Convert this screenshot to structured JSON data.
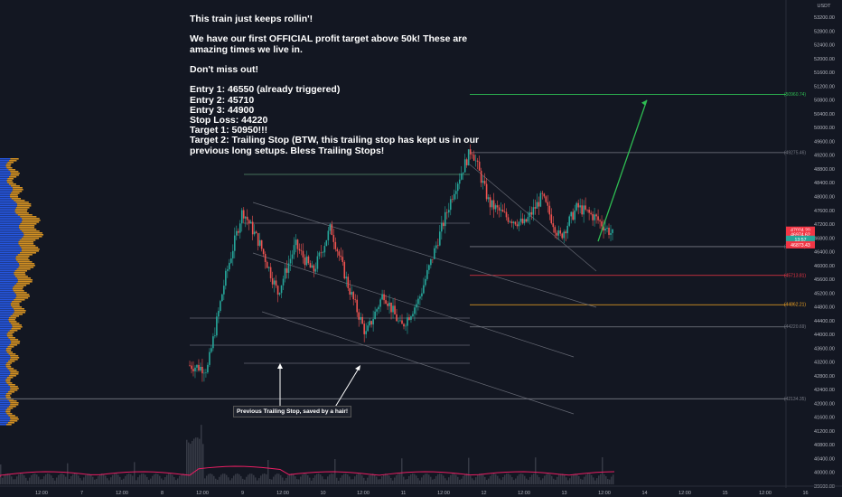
{
  "window": {
    "currency": "USDT"
  },
  "annotation": {
    "lines": [
      "This train just keeps rollin'!",
      "",
      "We have our first OFFICIAL profit target above 50k! These are",
      "amazing times we live in.",
      "",
      "Don't miss out!",
      "",
      "Entry 1: 46550 (already triggered)",
      "Entry 2: 45710",
      "Entry 3: 44900",
      "Stop Loss: 44220",
      "Target 1: 50950!!!",
      "Target 2: Trailing Stop (BTW, this trailing stop has kept us in our",
      "previous long setups. Bless Trailing Stops!"
    ],
    "callout": "Previous Trailing Stop, saved by a hair!"
  },
  "chart_data": {
    "type": "candlestick",
    "ylim": [
      39600,
      53700
    ],
    "y_ticks": [
      39600,
      40000,
      40400,
      40800,
      41200,
      41600,
      42000,
      42400,
      42800,
      43200,
      43600,
      44000,
      44400,
      44800,
      45200,
      45600,
      46000,
      46400,
      46800,
      47200,
      47600,
      48000,
      48400,
      48800,
      49200,
      49600,
      50000,
      50400,
      50800,
      51200,
      51600,
      52000,
      52400,
      52800,
      53200,
      53600
    ],
    "x_ticks": [
      "12:00",
      "7",
      "12:00",
      "8",
      "12:00",
      "9",
      "12:00",
      "10",
      "12:00",
      "11",
      "12:00",
      "12",
      "12:00",
      "13",
      "12:00",
      "14",
      "12:00",
      "15",
      "12:00",
      "16"
    ],
    "price_path": [
      {
        "t": 0,
        "p": 43100
      },
      {
        "t": 1,
        "p": 43000
      },
      {
        "t": 2,
        "p": 45600
      },
      {
        "t": 3,
        "p": 47600
      },
      {
        "t": 4,
        "p": 46600
      },
      {
        "t": 5,
        "p": 45200
      },
      {
        "t": 6,
        "p": 46600
      },
      {
        "t": 7,
        "p": 45800
      },
      {
        "t": 8,
        "p": 47100
      },
      {
        "t": 9,
        "p": 45400
      },
      {
        "t": 10,
        "p": 44000
      },
      {
        "t": 11,
        "p": 45200
      },
      {
        "t": 12,
        "p": 44200
      },
      {
        "t": 13,
        "p": 45000
      },
      {
        "t": 14,
        "p": 46600
      },
      {
        "t": 15,
        "p": 48200
      },
      {
        "t": 16,
        "p": 49400
      },
      {
        "t": 17,
        "p": 47800
      },
      {
        "t": 18,
        "p": 47400
      },
      {
        "t": 19,
        "p": 47200
      },
      {
        "t": 20,
        "p": 48000
      },
      {
        "t": 21,
        "p": 46800
      },
      {
        "t": 22,
        "p": 47700
      },
      {
        "t": 23,
        "p": 47400
      },
      {
        "t": 24,
        "p": 46900
      }
    ],
    "levels": [
      {
        "label": "(50960.74)",
        "value": 50960,
        "color": "#2ebd52"
      },
      {
        "label": "(49275.46)",
        "value": 49275,
        "color": "#787b86"
      },
      {
        "label": "(46547.53)",
        "value": 46547,
        "color": "#787b86"
      },
      {
        "label": "(45713.81)",
        "value": 45713,
        "color": "#f23645"
      },
      {
        "label": "(44862.21)",
        "value": 44862,
        "color": "#f5a623"
      },
      {
        "label": "(44220.69)",
        "value": 44220,
        "color": "#787b86"
      },
      {
        "label": "(42134.35)",
        "value": 42134,
        "color": "#787b86"
      }
    ],
    "price_labels": [
      {
        "label": "47024.20",
        "value": 47024,
        "color": "#f23645"
      },
      {
        "label": "46974.62",
        "value": 46900,
        "color": "#f23645"
      },
      {
        "label": "13:57",
        "value": 46760,
        "color": "#26a69a"
      },
      {
        "label": "46873.43",
        "value": 46600,
        "color": "#f23645"
      }
    ],
    "colors": {
      "up": "#26a69a",
      "down": "#ef5350",
      "target": "#2ebd52",
      "bg": "#131722",
      "profile_blue": "#2962ff",
      "profile_orange": "#f5a623"
    }
  }
}
